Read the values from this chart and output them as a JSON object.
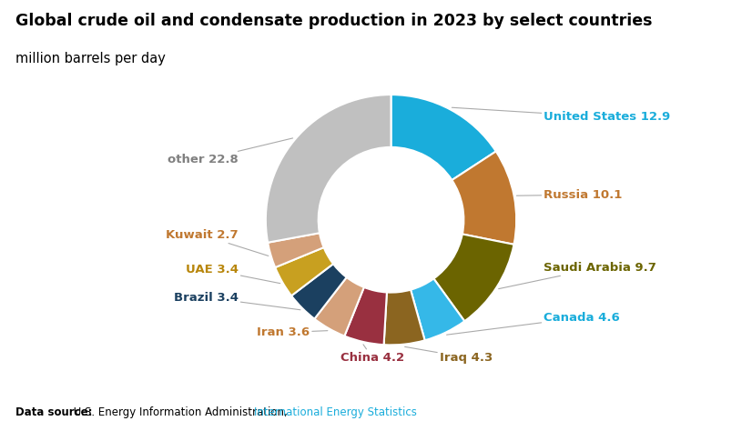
{
  "title": "Global crude oil and condensate production in 2023 by select countries",
  "subtitle": "million barrels per day",
  "datasource_bold": "Data source:",
  "datasource_normal": " U.S. Energy Information Administration, ",
  "datasource_link": "International Energy Statistics",
  "countries": [
    "United States",
    "Russia",
    "Saudi Arabia",
    "Canada",
    "Iraq",
    "China",
    "Iran",
    "Brazil",
    "UAE",
    "Kuwait",
    "other"
  ],
  "values": [
    12.9,
    10.1,
    9.7,
    4.6,
    4.3,
    4.2,
    3.6,
    3.4,
    3.4,
    2.7,
    22.8
  ],
  "wedge_colors": [
    "#1AADDB",
    "#C07830",
    "#6B6400",
    "#35B8E8",
    "#8B6520",
    "#993040",
    "#D4A07A",
    "#1B4060",
    "#C8A020",
    "#D4A07A",
    "#C0C0C0"
  ],
  "label_colors": [
    "#1AADDB",
    "#C07830",
    "#6B6400",
    "#1AADDB",
    "#8B6520",
    "#993040",
    "#C07830",
    "#1B4060",
    "#B8860B",
    "#C07830",
    "#808080"
  ],
  "background_color": "#FFFFFF",
  "wedge_edge_color": "#FFFFFF",
  "title_fontsize": 12.5,
  "subtitle_fontsize": 10.5,
  "label_fontsize": 9.5,
  "donut_width": 0.42
}
